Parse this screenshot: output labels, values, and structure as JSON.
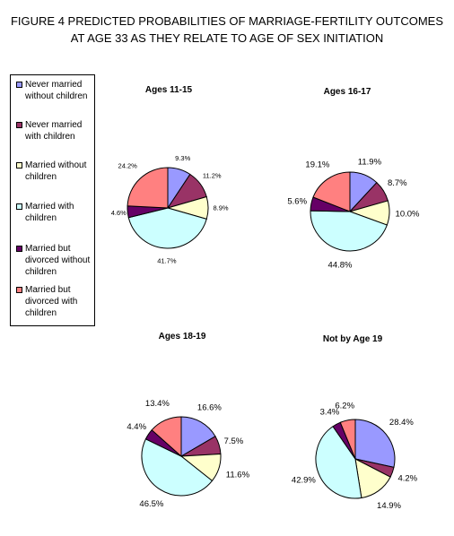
{
  "title_lines": [
    "FIGURE 4 PREDICTED PROBABILITIES OF MARRIAGE-FERTILITY OUTCOMES",
    "AT AGE 33 AS THEY RELATE TO AGE OF SEX INITIATION"
  ],
  "legend": [
    {
      "lines": [
        "Never married",
        "without children"
      ],
      "color": "#9999ff"
    },
    {
      "lines": [
        "Never married",
        "with children"
      ],
      "color": "#993366"
    },
    {
      "lines": [
        "Married without",
        "children"
      ],
      "color": "#ffffcc"
    },
    {
      "lines": [
        "Married with",
        "children"
      ],
      "color": "#ccffff"
    },
    {
      "lines": [
        "Married but",
        "divorced without",
        "children"
      ],
      "color": "#660066"
    },
    {
      "lines": [
        "Married but",
        "divorced with",
        "children"
      ],
      "color": "#ff8080"
    }
  ],
  "chart_data": [
    {
      "type": "pie",
      "title": "Ages 11-15",
      "values": [
        9.3,
        11.2,
        8.9,
        41.7,
        4.6,
        24.2
      ],
      "labels": [
        "9.3%",
        "11.2%",
        "8.9%",
        "41.7%",
        "4.6%",
        "24.2%"
      ]
    },
    {
      "type": "pie",
      "title": "Ages 16-17",
      "values": [
        11.9,
        8.7,
        10.0,
        44.8,
        5.6,
        19.1
      ],
      "labels": [
        "11.9%",
        "8.7%",
        "10.0%",
        "44.8%",
        "5.6%",
        "19.1%"
      ]
    },
    {
      "type": "pie",
      "title": "Ages 18-19",
      "values": [
        16.6,
        7.5,
        11.6,
        46.5,
        4.4,
        13.4
      ],
      "labels": [
        "16.6%",
        "7.5%",
        "11.6%",
        "46.5%",
        "4.4%",
        "13.4%"
      ]
    },
    {
      "type": "pie",
      "title": "Not by Age 19",
      "values": [
        28.4,
        4.2,
        14.9,
        42.9,
        3.4,
        6.2
      ],
      "labels": [
        "28.4%",
        "4.2%",
        "14.9%",
        "42.9%",
        "3.4%",
        "6.2%"
      ]
    }
  ]
}
